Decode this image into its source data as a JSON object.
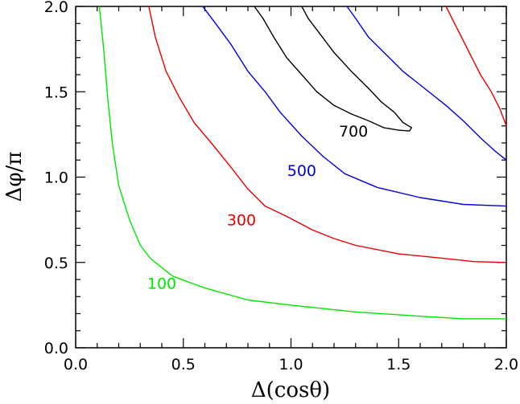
{
  "chart_data": {
    "type": "line",
    "subtype": "contour",
    "xlabel": "Δ(cosθ)",
    "ylabel": "Δφ/π",
    "xlim": [
      0,
      2
    ],
    "ylim": [
      0,
      2
    ],
    "x_ticks": [
      "0.0",
      "0.5",
      "1.0",
      "1.5",
      "2.0"
    ],
    "y_ticks": [
      "0.0",
      "0.5",
      "1.0",
      "1.5",
      "2.0"
    ],
    "grid": false,
    "series": [
      {
        "name": "100",
        "color": "#00e600",
        "label_pos": [
          0.4,
          0.38
        ],
        "points": [
          [
            0.11,
            2.0
          ],
          [
            0.13,
            1.75
          ],
          [
            0.15,
            1.45
          ],
          [
            0.17,
            1.2
          ],
          [
            0.2,
            0.95
          ],
          [
            0.25,
            0.75
          ],
          [
            0.3,
            0.6
          ],
          [
            0.35,
            0.52
          ],
          [
            0.45,
            0.42
          ],
          [
            0.6,
            0.35
          ],
          [
            0.8,
            0.28
          ],
          [
            1.0,
            0.25
          ],
          [
            1.3,
            0.21
          ],
          [
            1.6,
            0.185
          ],
          [
            1.8,
            0.17
          ],
          [
            2.0,
            0.17
          ]
        ]
      },
      {
        "name": "300",
        "color": "#e60000",
        "label_pos": [
          0.77,
          0.75
        ],
        "points": [
          [
            0.34,
            2.0
          ],
          [
            0.37,
            1.82
          ],
          [
            0.42,
            1.62
          ],
          [
            0.48,
            1.47
          ],
          [
            0.55,
            1.32
          ],
          [
            0.63,
            1.2
          ],
          [
            0.72,
            1.06
          ],
          [
            0.8,
            0.93
          ],
          [
            0.88,
            0.83
          ],
          [
            0.98,
            0.77
          ],
          [
            1.1,
            0.69
          ],
          [
            1.2,
            0.64
          ],
          [
            1.3,
            0.6
          ],
          [
            1.5,
            0.55
          ],
          [
            1.7,
            0.525
          ],
          [
            1.85,
            0.505
          ],
          [
            2.0,
            0.5
          ]
        ]
      },
      {
        "name": "500",
        "color": "#0000dd",
        "label_pos": [
          1.05,
          1.04
        ],
        "points": [
          [
            0.59,
            2.0
          ],
          [
            0.65,
            1.9
          ],
          [
            0.72,
            1.78
          ],
          [
            0.8,
            1.62
          ],
          [
            0.88,
            1.5
          ],
          [
            0.95,
            1.38
          ],
          [
            1.05,
            1.24
          ],
          [
            1.15,
            1.12
          ],
          [
            1.25,
            1.02
          ],
          [
            1.4,
            0.94
          ],
          [
            1.6,
            0.88
          ],
          [
            1.8,
            0.84
          ],
          [
            2.0,
            0.83
          ]
        ]
      },
      {
        "name": "700",
        "color": "#000000",
        "label_pos": [
          1.29,
          1.27
        ],
        "points": [
          [
            0.83,
            2.0
          ],
          [
            0.87,
            1.93
          ],
          [
            0.92,
            1.82
          ],
          [
            0.98,
            1.7
          ],
          [
            1.05,
            1.6
          ],
          [
            1.12,
            1.5
          ],
          [
            1.2,
            1.42
          ],
          [
            1.28,
            1.37
          ],
          [
            1.36,
            1.33
          ],
          [
            1.43,
            1.29
          ],
          [
            1.5,
            1.275
          ],
          [
            1.55,
            1.27
          ],
          [
            1.56,
            1.29
          ],
          [
            1.52,
            1.32
          ],
          [
            1.48,
            1.38
          ],
          [
            1.42,
            1.44
          ],
          [
            1.36,
            1.52
          ],
          [
            1.28,
            1.62
          ],
          [
            1.2,
            1.73
          ],
          [
            1.14,
            1.83
          ],
          [
            1.08,
            1.93
          ],
          [
            1.05,
            2.0
          ]
        ]
      },
      {
        "name": "",
        "color": "#0000dd",
        "points": [
          [
            1.26,
            2.0
          ],
          [
            1.3,
            1.93
          ],
          [
            1.36,
            1.82
          ],
          [
            1.44,
            1.72
          ],
          [
            1.52,
            1.62
          ],
          [
            1.62,
            1.52
          ],
          [
            1.72,
            1.42
          ],
          [
            1.8,
            1.33
          ],
          [
            1.88,
            1.23
          ],
          [
            1.95,
            1.15
          ],
          [
            2.0,
            1.1
          ]
        ]
      },
      {
        "name": "",
        "color": "#e60000",
        "points": [
          [
            1.72,
            2.0
          ],
          [
            1.76,
            1.9
          ],
          [
            1.8,
            1.8
          ],
          [
            1.84,
            1.7
          ],
          [
            1.88,
            1.6
          ],
          [
            1.93,
            1.5
          ],
          [
            1.97,
            1.4
          ],
          [
            2.0,
            1.3
          ]
        ]
      }
    ]
  }
}
